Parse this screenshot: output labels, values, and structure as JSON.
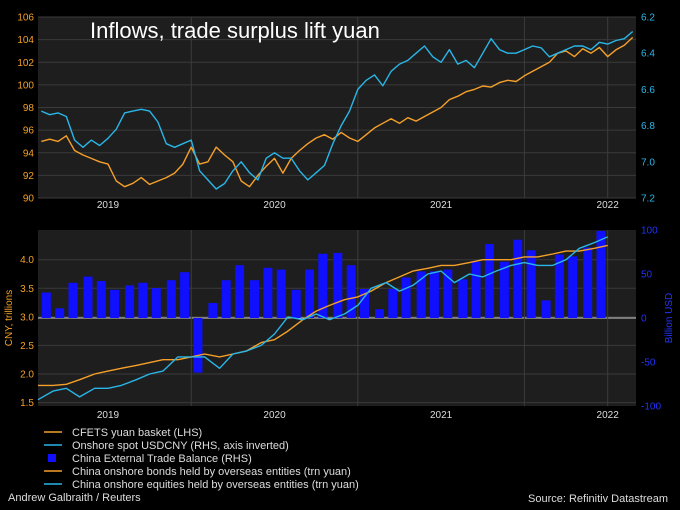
{
  "title": "Inflows, trade surplus lift yuan",
  "credit_left": "Andrew Galbraith / Reuters",
  "credit_right": "Source: Refinitiv Datastream",
  "colors": {
    "orange": "#f5a02a",
    "cyan": "#29b6e8",
    "blue": "#1010ff",
    "grid": "#3a3a3a",
    "panel": "#1e1e1e",
    "axis_blue": "#2233ff"
  },
  "chart_data": [
    {
      "type": "line",
      "panel": "top",
      "title": "Inflows, trade surplus lift yuan",
      "x_ticks": [
        "2019",
        "2020",
        "2021",
        "2022"
      ],
      "y_left": {
        "ticks": [
          "106",
          "104",
          "102",
          "100",
          "98",
          "96",
          "94",
          "92",
          "90"
        ],
        "range": [
          90,
          106
        ]
      },
      "y_right": {
        "ticks": [
          "6.2",
          "6.4",
          "6.6",
          "6.8",
          "7.0",
          "7.2"
        ],
        "range": [
          6.2,
          7.2
        ],
        "inverted": true
      },
      "series": [
        {
          "name": "CFETS yuan basket (LHS)",
          "axis": "left",
          "x": [
            2018.6,
            2018.65,
            2018.7,
            2018.75,
            2018.8,
            2018.85,
            2018.9,
            2018.95,
            2019.0,
            2019.05,
            2019.1,
            2019.15,
            2019.2,
            2019.25,
            2019.3,
            2019.35,
            2019.4,
            2019.45,
            2019.5,
            2019.55,
            2019.6,
            2019.65,
            2019.7,
            2019.75,
            2019.8,
            2019.85,
            2019.9,
            2019.95,
            2020.0,
            2020.05,
            2020.1,
            2020.15,
            2020.2,
            2020.25,
            2020.3,
            2020.35,
            2020.4,
            2020.45,
            2020.5,
            2020.55,
            2020.6,
            2020.65,
            2020.7,
            2020.75,
            2020.8,
            2020.85,
            2020.9,
            2020.95,
            2021.0,
            2021.05,
            2021.1,
            2021.15,
            2021.2,
            2021.25,
            2021.3,
            2021.35,
            2021.4,
            2021.45,
            2021.5,
            2021.55,
            2021.6,
            2021.65,
            2021.7,
            2021.75,
            2021.8,
            2021.85,
            2021.9,
            2021.95,
            2022.0,
            2022.05,
            2022.1,
            2022.15
          ],
          "values": [
            95,
            95.2,
            95,
            95.5,
            94.2,
            93.8,
            93.5,
            93.2,
            93.0,
            91.5,
            91.0,
            91.3,
            91.8,
            91.2,
            91.5,
            91.8,
            92.2,
            93.0,
            94.5,
            93.0,
            93.2,
            94.5,
            93.8,
            93.2,
            91.5,
            91.0,
            92.0,
            92.8,
            93.5,
            92.2,
            93.5,
            94.2,
            94.8,
            95.3,
            95.6,
            95.2,
            95.8,
            95.3,
            95.0,
            95.6,
            96.2,
            96.6,
            97.0,
            96.6,
            97.1,
            96.8,
            97.2,
            97.6,
            98.0,
            98.7,
            99.0,
            99.4,
            99.6,
            99.9,
            99.8,
            100.2,
            100.4,
            100.3,
            100.8,
            101.2,
            101.6,
            102.0,
            102.8,
            103.0,
            102.5,
            103.2,
            102.8,
            103.3,
            102.5,
            103.1,
            103.5,
            104.2
          ]
        },
        {
          "name": "Onshore spot USDCNY (RHS, axis inverted)",
          "axis": "right",
          "x": [
            2018.6,
            2018.65,
            2018.7,
            2018.75,
            2018.8,
            2018.85,
            2018.9,
            2018.95,
            2019.0,
            2019.05,
            2019.1,
            2019.15,
            2019.2,
            2019.25,
            2019.3,
            2019.35,
            2019.4,
            2019.45,
            2019.5,
            2019.55,
            2019.6,
            2019.65,
            2019.7,
            2019.75,
            2019.8,
            2019.85,
            2019.9,
            2019.95,
            2020.0,
            2020.05,
            2020.1,
            2020.15,
            2020.2,
            2020.25,
            2020.3,
            2020.35,
            2020.4,
            2020.45,
            2020.5,
            2020.55,
            2020.6,
            2020.65,
            2020.7,
            2020.75,
            2020.8,
            2020.85,
            2020.9,
            2020.95,
            2021.0,
            2021.05,
            2021.1,
            2021.15,
            2021.2,
            2021.25,
            2021.3,
            2021.35,
            2021.4,
            2021.45,
            2021.5,
            2021.55,
            2021.6,
            2021.65,
            2021.7,
            2021.75,
            2021.8,
            2021.85,
            2021.9,
            2021.95,
            2022.0,
            2022.05,
            2022.1,
            2022.15
          ],
          "values": [
            6.72,
            6.74,
            6.73,
            6.75,
            6.88,
            6.92,
            6.88,
            6.91,
            6.87,
            6.82,
            6.73,
            6.72,
            6.71,
            6.72,
            6.78,
            6.9,
            6.92,
            6.9,
            6.88,
            7.05,
            7.1,
            7.15,
            7.12,
            7.05,
            7.0,
            7.06,
            7.1,
            6.98,
            6.95,
            6.98,
            6.98,
            7.05,
            7.1,
            7.06,
            7.02,
            6.9,
            6.8,
            6.72,
            6.6,
            6.55,
            6.52,
            6.58,
            6.5,
            6.46,
            6.44,
            6.4,
            6.36,
            6.42,
            6.45,
            6.38,
            6.46,
            6.44,
            6.48,
            6.4,
            6.32,
            6.38,
            6.4,
            6.4,
            6.38,
            6.36,
            6.37,
            6.42,
            6.4,
            6.38,
            6.36,
            6.36,
            6.38,
            6.34,
            6.35,
            6.33,
            6.32,
            6.28
          ]
        }
      ]
    },
    {
      "type": "bar",
      "panel": "bottom",
      "x_ticks": [
        "2019",
        "2020",
        "2021",
        "2022"
      ],
      "y_left": {
        "label": "CNY, trillions",
        "ticks": [
          "4.0",
          "3.5",
          "3.0",
          "2.5",
          "2.0",
          "1.5"
        ],
        "range": [
          1.4,
          4.4
        ]
      },
      "y_right": {
        "label": "Billion USD",
        "ticks": [
          "100",
          "50",
          "0",
          "-50",
          "-100"
        ],
        "range": [
          -100,
          100
        ]
      },
      "bars": {
        "name": "China External Trade Balance (RHS)",
        "x": [
          2018.63,
          2018.71,
          2018.79,
          2018.88,
          2018.96,
          2019.04,
          2019.13,
          2019.21,
          2019.29,
          2019.38,
          2019.46,
          2019.54,
          2019.63,
          2019.71,
          2019.79,
          2019.88,
          2019.96,
          2020.04,
          2020.13,
          2020.21,
          2020.29,
          2020.38,
          2020.46,
          2020.54,
          2020.63,
          2020.71,
          2020.79,
          2020.88,
          2020.96,
          2021.04,
          2021.13,
          2021.21,
          2021.29,
          2021.38,
          2021.46,
          2021.54,
          2021.63,
          2021.71,
          2021.79,
          2021.88,
          2021.96
        ],
        "values": [
          29,
          11,
          40,
          47,
          42,
          32,
          37,
          40,
          34,
          43,
          52,
          -62,
          17,
          43,
          60,
          43,
          57,
          55,
          32,
          55,
          73,
          74,
          60,
          33,
          10,
          33,
          46,
          53,
          53,
          55,
          44,
          64,
          84,
          64,
          89,
          77,
          20,
          72,
          70,
          80,
          99
        ]
      },
      "series": [
        {
          "name": "China onshore bonds held by overseas entities (trn yuan)",
          "axis": "left",
          "x": [
            2018.58,
            2018.67,
            2018.75,
            2018.83,
            2018.92,
            2019.0,
            2019.08,
            2019.17,
            2019.25,
            2019.33,
            2019.42,
            2019.5,
            2019.58,
            2019.67,
            2019.75,
            2019.83,
            2019.92,
            2020.0,
            2020.08,
            2020.17,
            2020.25,
            2020.33,
            2020.42,
            2020.5,
            2020.58,
            2020.67,
            2020.75,
            2020.83,
            2020.92,
            2021.0,
            2021.08,
            2021.17,
            2021.25,
            2021.33,
            2021.42,
            2021.5,
            2021.58,
            2021.67,
            2021.75,
            2021.83,
            2021.92,
            2022.0
          ],
          "values": [
            1.8,
            1.8,
            1.82,
            1.9,
            2.0,
            2.05,
            2.1,
            2.15,
            2.2,
            2.25,
            2.25,
            2.3,
            2.35,
            2.3,
            2.35,
            2.4,
            2.55,
            2.6,
            2.75,
            2.95,
            3.1,
            3.2,
            3.3,
            3.35,
            3.45,
            3.6,
            3.7,
            3.8,
            3.85,
            3.9,
            3.9,
            3.95,
            4.0,
            4.0,
            4.0,
            4.05,
            4.05,
            4.1,
            4.15,
            4.15,
            4.2,
            4.25
          ]
        },
        {
          "name": "China onshore equities held by overseas entities (trn yuan)",
          "axis": "left",
          "x": [
            2018.58,
            2018.67,
            2018.75,
            2018.83,
            2018.92,
            2019.0,
            2019.08,
            2019.17,
            2019.25,
            2019.33,
            2019.42,
            2019.5,
            2019.58,
            2019.67,
            2019.75,
            2019.83,
            2019.92,
            2020.0,
            2020.08,
            2020.17,
            2020.25,
            2020.33,
            2020.42,
            2020.5,
            2020.58,
            2020.67,
            2020.75,
            2020.83,
            2020.92,
            2021.0,
            2021.08,
            2021.17,
            2021.25,
            2021.33,
            2021.42,
            2021.5,
            2021.58,
            2021.67,
            2021.75,
            2021.83,
            2021.92,
            2022.0
          ],
          "values": [
            1.55,
            1.7,
            1.75,
            1.6,
            1.75,
            1.75,
            1.8,
            1.9,
            2.0,
            2.05,
            2.3,
            2.3,
            2.3,
            2.1,
            2.35,
            2.4,
            2.5,
            2.7,
            3.0,
            2.95,
            3.05,
            2.95,
            3.05,
            3.2,
            3.5,
            3.6,
            3.45,
            3.55,
            3.75,
            3.8,
            3.6,
            3.75,
            3.7,
            3.8,
            3.9,
            3.95,
            3.9,
            3.9,
            4.0,
            4.2,
            4.3,
            4.4
          ]
        }
      ]
    }
  ]
}
